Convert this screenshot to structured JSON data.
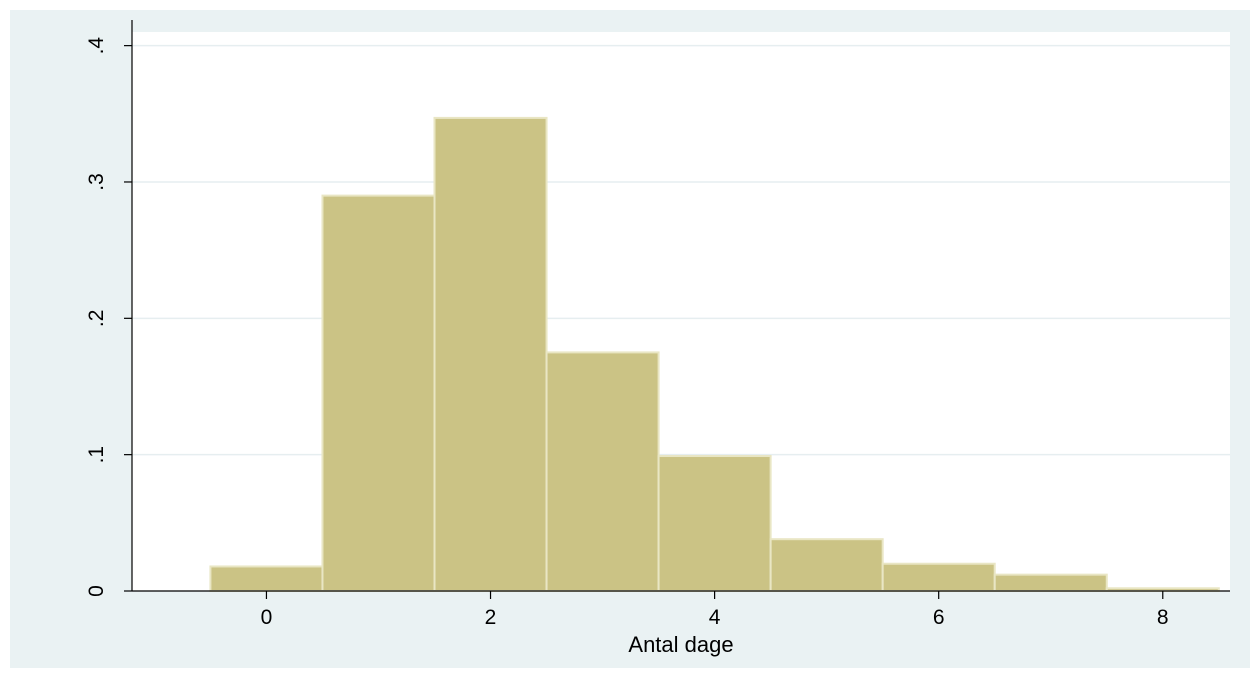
{
  "chart_data": {
    "type": "bar",
    "title": "",
    "xlabel": "Antal dage",
    "ylabel": "",
    "x": [
      0,
      1,
      2,
      3,
      4,
      5,
      6,
      7,
      8
    ],
    "values": [
      0.018,
      0.29,
      0.347,
      0.175,
      0.099,
      0.038,
      0.02,
      0.012,
      0.002
    ],
    "bin_width": 1,
    "xlim": [
      -1.2,
      8.6
    ],
    "ylim": [
      0,
      0.41
    ],
    "x_ticks": [
      0,
      2,
      4,
      6,
      8
    ],
    "x_tick_labels": [
      "0",
      "2",
      "4",
      "6",
      "8"
    ],
    "y_ticks": [
      0,
      0.1,
      0.2,
      0.3,
      0.4
    ],
    "y_tick_labels": [
      "0",
      ".1",
      ".2",
      ".3",
      ".4"
    ],
    "grid": true,
    "legend": "none",
    "colors": {
      "bar_fill": "#cbc385",
      "bar_edge": "#e9e6c4",
      "frame_bg": "#eaf2f3",
      "plot_bg": "#ffffff",
      "grid": "#e6eef0",
      "axis": "#000000"
    }
  }
}
